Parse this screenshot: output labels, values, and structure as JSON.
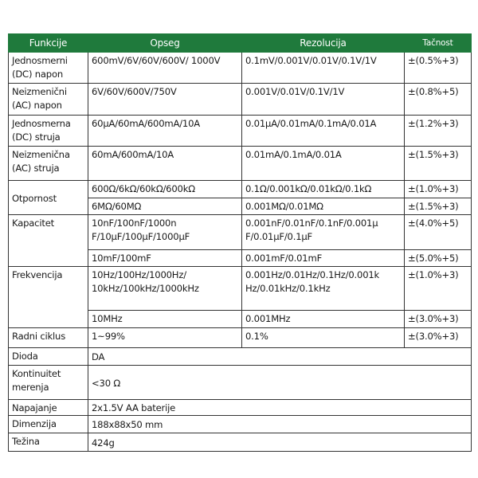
{
  "header": {
    "function": "Funkcije",
    "range": "Opseg",
    "resolution": "Rezolucija",
    "accuracy": "Tačnost"
  },
  "accent_color": "#1f7a3c",
  "rows": [
    {
      "function": "Jednosmerni (DC) napon",
      "sub": [
        {
          "range": "600mV/6V/60V/600V/ 1000V",
          "resolution": "0.1mV/0.001V/0.01V/0.1V/1V",
          "accuracy": "±(0.5%+3)"
        }
      ]
    },
    {
      "function": "Neizmenični (AC) napon",
      "sub": [
        {
          "range": "6V/60V/600V/750V",
          "resolution": "0.001V/0.01V/0.1V/1V",
          "accuracy": "±(0.8%+5)"
        }
      ]
    },
    {
      "function": "Jednosmerna (DC) struja",
      "sub": [
        {
          "range": "60µA/60mA/600mA/10A",
          "resolution": "0.01µA/0.01mA/0.1mA/0.01A",
          "accuracy": "±(1.2%+3)"
        }
      ]
    },
    {
      "function": "Neizmenična (AC) struja",
      "sub": [
        {
          "range": "60mA/600mA/10A",
          "resolution": "0.01mA/0.1mA/0.01A",
          "accuracy": "±(1.5%+3)"
        }
      ]
    },
    {
      "function": "Otpornost",
      "sub": [
        {
          "range": "600Ω/6kΩ/60kΩ/600kΩ",
          "resolution": "0.1Ω/0.001kΩ/0.01kΩ/0.1kΩ",
          "accuracy": "±(1.0%+3)"
        },
        {
          "range": "6MΩ/60MΩ",
          "resolution": "0.001MΩ/0.01MΩ",
          "accuracy": "±(1.5%+3)"
        }
      ]
    },
    {
      "function": "Kapacitet",
      "sub": [
        {
          "range": "10nF/100nF/1000n F/10µF/100µF/1000µF",
          "resolution": "0.001nF/0.01nF/0.1nF/0.001µ F/0.01µF/0.1µF",
          "accuracy": "±(4.0%+5)"
        },
        {
          "range": "10mF/100mF",
          "resolution": "0.001mF/0.01mF",
          "accuracy": "±(5.0%+5)"
        }
      ]
    },
    {
      "function": "Frekvencija",
      "sub": [
        {
          "range": "10Hz/100Hz/1000Hz/ 10kHz/100kHz/1000kHz",
          "resolution": "0.001Hz/0.01Hz/0.1Hz/0.001k Hz/0.01kHz/0.1kHz",
          "accuracy": "±(1.0%+3)"
        },
        {
          "range": "10MHz",
          "resolution": "0.001MHz",
          "accuracy": "±(3.0%+3)"
        }
      ]
    },
    {
      "function": "Radni ciklus",
      "sub": [
        {
          "range": "1~99%",
          "resolution": "0.1%",
          "accuracy": "±(3.0%+3)"
        }
      ]
    },
    {
      "function": "Dioda",
      "value": "DA"
    },
    {
      "function": "Kontinuitet merenja",
      "value": "<30 Ω"
    },
    {
      "function": "Napajanje",
      "value": "2x1.5V AA baterije"
    },
    {
      "function": "Dimenzija",
      "value": "188x88x50 mm"
    },
    {
      "function": "Težina",
      "value": "424g"
    }
  ]
}
